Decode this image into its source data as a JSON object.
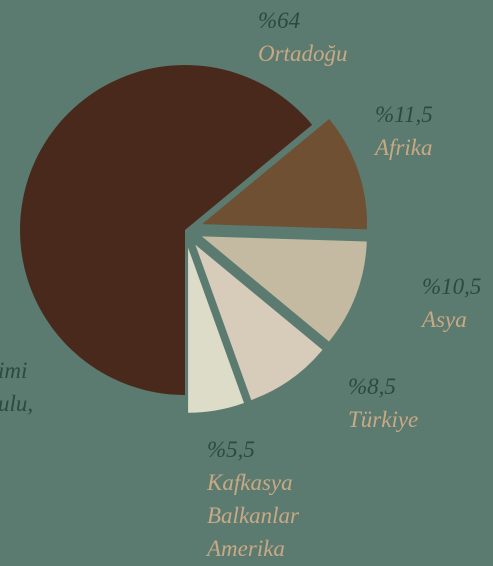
{
  "chart_data": {
    "type": "pie",
    "categories": [
      "Ortadoğu",
      "Afrika",
      "Asya",
      "Türkiye",
      "Kafkasya Balkanlar Amerika"
    ],
    "values": [
      64,
      11.5,
      10.5,
      8.5,
      5.5
    ],
    "value_labels": [
      "%64",
      "%11,5",
      "%10,5",
      "%8,5",
      "%5,5"
    ],
    "colors": [
      "#4a291d",
      "#6f5033",
      "#c3baa1",
      "#d7ccb9",
      "#dcdcc9"
    ],
    "annotations": [
      "imi",
      "ulu,"
    ]
  }
}
